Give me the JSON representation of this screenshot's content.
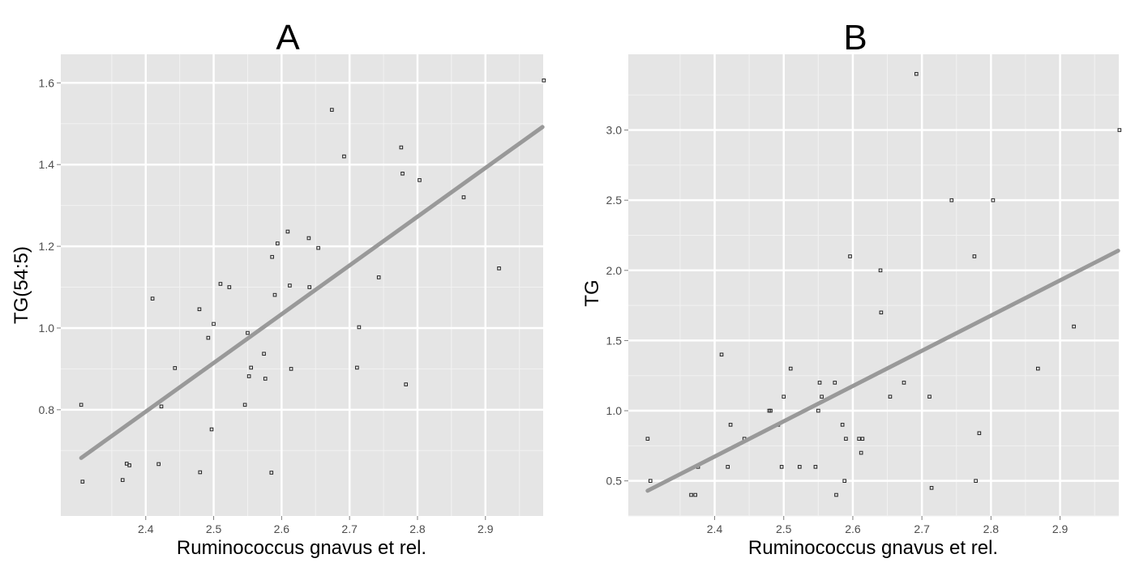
{
  "chart_data": [
    {
      "type": "scatter",
      "title": "A",
      "xlabel": "Ruminococcus gnavus et rel.",
      "ylabel": "TG(54:5)",
      "xlim": [
        2.275,
        2.985
      ],
      "ylim": [
        0.54,
        1.67
      ],
      "xticks": [
        2.4,
        2.5,
        2.6,
        2.7,
        2.8,
        2.9
      ],
      "yticks": [
        0.8,
        1.0,
        1.2,
        1.4,
        1.6
      ],
      "xtick_labels": [
        "2.4",
        "2.5",
        "2.6",
        "2.7",
        "2.8",
        "2.9"
      ],
      "ytick_labels": [
        "0.8",
        "1.0",
        "1.2",
        "1.4",
        "1.6"
      ],
      "grid": true,
      "points": [
        {
          "x": 2.305,
          "y": 0.812
        },
        {
          "x": 2.307,
          "y": 0.624
        },
        {
          "x": 2.366,
          "y": 0.628
        },
        {
          "x": 2.372,
          "y": 0.668
        },
        {
          "x": 2.376,
          "y": 0.664
        },
        {
          "x": 2.41,
          "y": 1.072
        },
        {
          "x": 2.419,
          "y": 0.667
        },
        {
          "x": 2.423,
          "y": 0.808
        },
        {
          "x": 2.443,
          "y": 0.902
        },
        {
          "x": 2.479,
          "y": 1.046
        },
        {
          "x": 2.48,
          "y": 0.647
        },
        {
          "x": 2.492,
          "y": 0.976
        },
        {
          "x": 2.497,
          "y": 0.752
        },
        {
          "x": 2.5,
          "y": 1.01
        },
        {
          "x": 2.51,
          "y": 1.108
        },
        {
          "x": 2.523,
          "y": 1.1
        },
        {
          "x": 2.546,
          "y": 0.812
        },
        {
          "x": 2.55,
          "y": 0.988
        },
        {
          "x": 2.552,
          "y": 0.882
        },
        {
          "x": 2.555,
          "y": 0.903
        },
        {
          "x": 2.574,
          "y": 0.937
        },
        {
          "x": 2.576,
          "y": 0.876
        },
        {
          "x": 2.585,
          "y": 0.646
        },
        {
          "x": 2.586,
          "y": 1.174
        },
        {
          "x": 2.59,
          "y": 1.081
        },
        {
          "x": 2.594,
          "y": 1.207
        },
        {
          "x": 2.609,
          "y": 1.236
        },
        {
          "x": 2.612,
          "y": 1.104
        },
        {
          "x": 2.614,
          "y": 0.9
        },
        {
          "x": 2.64,
          "y": 1.22
        },
        {
          "x": 2.641,
          "y": 1.1
        },
        {
          "x": 2.654,
          "y": 1.196
        },
        {
          "x": 2.674,
          "y": 1.534
        },
        {
          "x": 2.692,
          "y": 1.42
        },
        {
          "x": 2.711,
          "y": 0.903
        },
        {
          "x": 2.714,
          "y": 1.002
        },
        {
          "x": 2.743,
          "y": 1.124
        },
        {
          "x": 2.776,
          "y": 1.442
        },
        {
          "x": 2.778,
          "y": 1.378
        },
        {
          "x": 2.783,
          "y": 0.862
        },
        {
          "x": 2.803,
          "y": 1.362
        },
        {
          "x": 2.868,
          "y": 1.32
        },
        {
          "x": 2.92,
          "y": 1.146
        },
        {
          "x": 2.986,
          "y": 1.606
        }
      ],
      "fit": {
        "x": [
          2.305,
          2.984
        ],
        "y": [
          0.682,
          1.492
        ]
      }
    },
    {
      "type": "scatter",
      "title": "B",
      "xlabel": "Ruminococcus gnavus et rel.",
      "ylabel": "TG",
      "xlim": [
        2.275,
        2.985
      ],
      "ylim": [
        0.25,
        3.54
      ],
      "xticks": [
        2.4,
        2.5,
        2.6,
        2.7,
        2.8,
        2.9
      ],
      "yticks": [
        0.5,
        1.0,
        1.5,
        2.0,
        2.5,
        3.0
      ],
      "xtick_labels": [
        "2.4",
        "2.5",
        "2.6",
        "2.7",
        "2.8",
        "2.9"
      ],
      "ytick_labels": [
        "0.5",
        "1.0",
        "1.5",
        "2.0",
        "2.5",
        "3.0"
      ],
      "grid": true,
      "points": [
        {
          "x": 2.303,
          "y": 0.8
        },
        {
          "x": 2.307,
          "y": 0.5
        },
        {
          "x": 2.366,
          "y": 0.4
        },
        {
          "x": 2.372,
          "y": 0.4
        },
        {
          "x": 2.376,
          "y": 0.6
        },
        {
          "x": 2.41,
          "y": 1.4
        },
        {
          "x": 2.419,
          "y": 0.6
        },
        {
          "x": 2.423,
          "y": 0.9
        },
        {
          "x": 2.443,
          "y": 0.8
        },
        {
          "x": 2.479,
          "y": 1.0
        },
        {
          "x": 2.481,
          "y": 1.0
        },
        {
          "x": 2.492,
          "y": 0.9
        },
        {
          "x": 2.497,
          "y": 0.6
        },
        {
          "x": 2.5,
          "y": 1.1
        },
        {
          "x": 2.51,
          "y": 1.3
        },
        {
          "x": 2.523,
          "y": 0.6
        },
        {
          "x": 2.546,
          "y": 0.6
        },
        {
          "x": 2.55,
          "y": 1.0
        },
        {
          "x": 2.552,
          "y": 1.2
        },
        {
          "x": 2.555,
          "y": 1.1
        },
        {
          "x": 2.574,
          "y": 1.2
        },
        {
          "x": 2.576,
          "y": 0.4
        },
        {
          "x": 2.585,
          "y": 0.9
        },
        {
          "x": 2.588,
          "y": 0.5
        },
        {
          "x": 2.59,
          "y": 0.8
        },
        {
          "x": 2.596,
          "y": 2.1
        },
        {
          "x": 2.609,
          "y": 0.8
        },
        {
          "x": 2.612,
          "y": 0.7
        },
        {
          "x": 2.614,
          "y": 0.8
        },
        {
          "x": 2.64,
          "y": 2.0
        },
        {
          "x": 2.641,
          "y": 1.7
        },
        {
          "x": 2.654,
          "y": 1.1
        },
        {
          "x": 2.674,
          "y": 1.2
        },
        {
          "x": 2.692,
          "y": 3.4
        },
        {
          "x": 2.711,
          "y": 1.1
        },
        {
          "x": 2.714,
          "y": 0.45
        },
        {
          "x": 2.743,
          "y": 2.5
        },
        {
          "x": 2.776,
          "y": 2.1
        },
        {
          "x": 2.778,
          "y": 0.5
        },
        {
          "x": 2.783,
          "y": 0.84
        },
        {
          "x": 2.803,
          "y": 2.5
        },
        {
          "x": 2.868,
          "y": 1.3
        },
        {
          "x": 2.92,
          "y": 1.6
        },
        {
          "x": 2.986,
          "y": 3.0
        }
      ],
      "fit": {
        "x": [
          2.303,
          2.984
        ],
        "y": [
          0.43,
          2.14
        ]
      }
    }
  ]
}
